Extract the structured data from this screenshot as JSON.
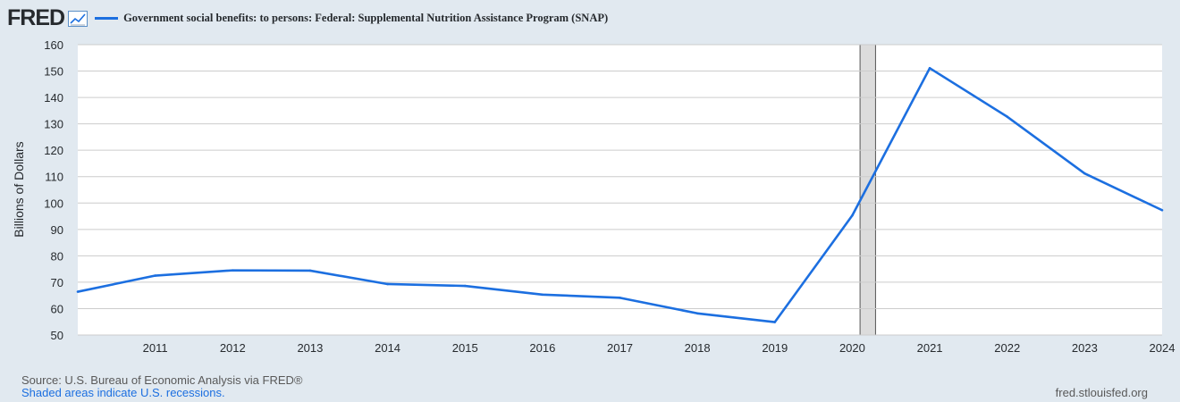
{
  "header": {
    "logo_text": "FRED",
    "series_label": "Government social benefits: to persons: Federal: Supplemental Nutrition Assistance Program (SNAP)",
    "series_color": "#1c6fe0"
  },
  "chart_data": {
    "type": "line",
    "title": "",
    "xlabel": "",
    "ylabel": "Billions of Dollars",
    "x": [
      2010,
      2011,
      2012,
      2013,
      2014,
      2015,
      2016,
      2017,
      2018,
      2019,
      2020,
      2021,
      2022,
      2023,
      2024
    ],
    "series": [
      {
        "name": "Government social benefits: to persons: Federal: Supplemental Nutrition Assistance Program (SNAP)",
        "values": [
          66.4,
          72.5,
          74.5,
          74.4,
          69.3,
          68.6,
          65.3,
          64.1,
          58.2,
          54.9,
          95.3,
          151.1,
          132.7,
          111.2,
          97.3
        ]
      }
    ],
    "xlim": [
      2010,
      2024
    ],
    "ylim": [
      50,
      160
    ],
    "x_ticks": [
      2011,
      2012,
      2013,
      2014,
      2015,
      2016,
      2017,
      2018,
      2019,
      2020,
      2021,
      2022,
      2023,
      2024
    ],
    "y_ticks": [
      50,
      60,
      70,
      80,
      90,
      100,
      110,
      120,
      130,
      140,
      150,
      160
    ],
    "recessions": [
      [
        2020.1,
        2020.3
      ]
    ],
    "grid": true,
    "colors": {
      "line": "#1c6fe0",
      "recession": "#dcdcdc",
      "recession_edge": "#555555",
      "grid": "#cccccc"
    }
  },
  "footer": {
    "source": "Source: U.S. Bureau of Economic Analysis via FRED®",
    "recession_note": "Shaded areas indicate U.S. recessions.",
    "site": "fred.stlouisfed.org"
  }
}
